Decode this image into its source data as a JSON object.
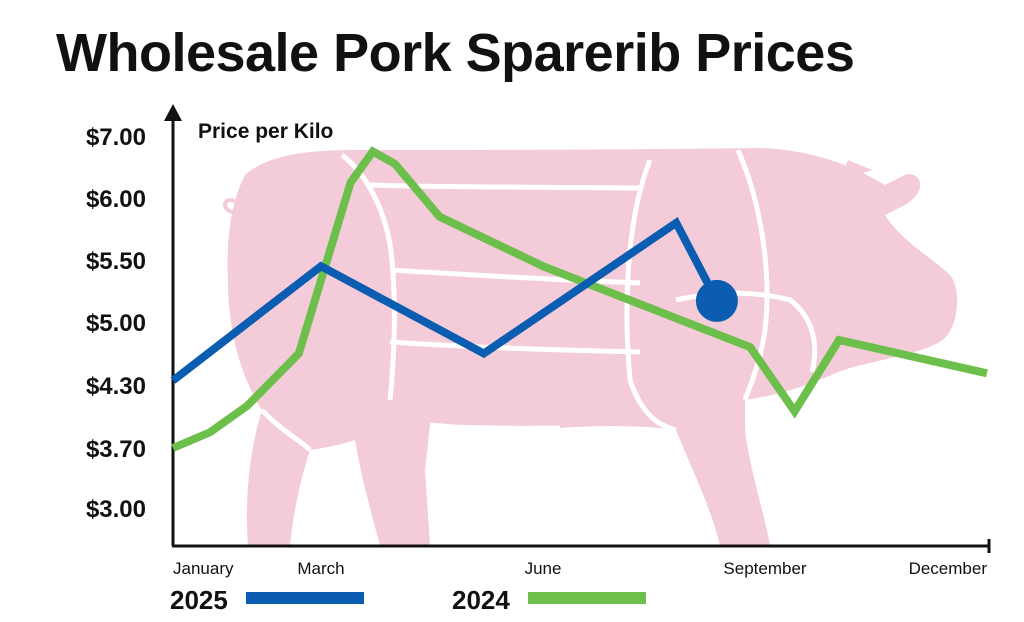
{
  "chart_data": {
    "type": "line",
    "title": "Wholesale Pork Sparerib Prices",
    "ylabel": "Price per Kilo",
    "xlabel": "",
    "y_tick_labels": [
      "$3.00",
      "$3.70",
      "$4.30",
      "$5.00",
      "$5.50",
      "$6.00",
      "$7.00"
    ],
    "x_tick_labels": [
      "January",
      "March",
      "June",
      "September",
      "December"
    ],
    "x_tick_positions": [
      1,
      3,
      6,
      9,
      12
    ],
    "x_range": [
      1,
      12
    ],
    "grid": false,
    "legend_placement": "bottom",
    "series": [
      {
        "name": "2025",
        "color": "#0a5db0",
        "x": [
          1,
          3,
          5.2,
          7.8,
          8.35
        ],
        "y": [
          4.35,
          5.45,
          4.65,
          5.8,
          5.17
        ],
        "end_marker": true
      },
      {
        "name": "2024",
        "color": "#6cbf4a",
        "x": [
          1,
          1.5,
          2,
          2.7,
          3.4,
          3.7,
          4.0,
          4.6,
          6.0,
          8.8,
          9.4,
          10.0,
          12.0
        ],
        "y": [
          3.7,
          3.85,
          4.1,
          4.65,
          6.25,
          6.75,
          6.55,
          5.85,
          5.45,
          4.72,
          4.05,
          4.8,
          4.43
        ]
      }
    ]
  },
  "background": {
    "illustration": "pig-silhouette-icon",
    "fill": "#f4cbd8",
    "lines": "#ffffff"
  }
}
